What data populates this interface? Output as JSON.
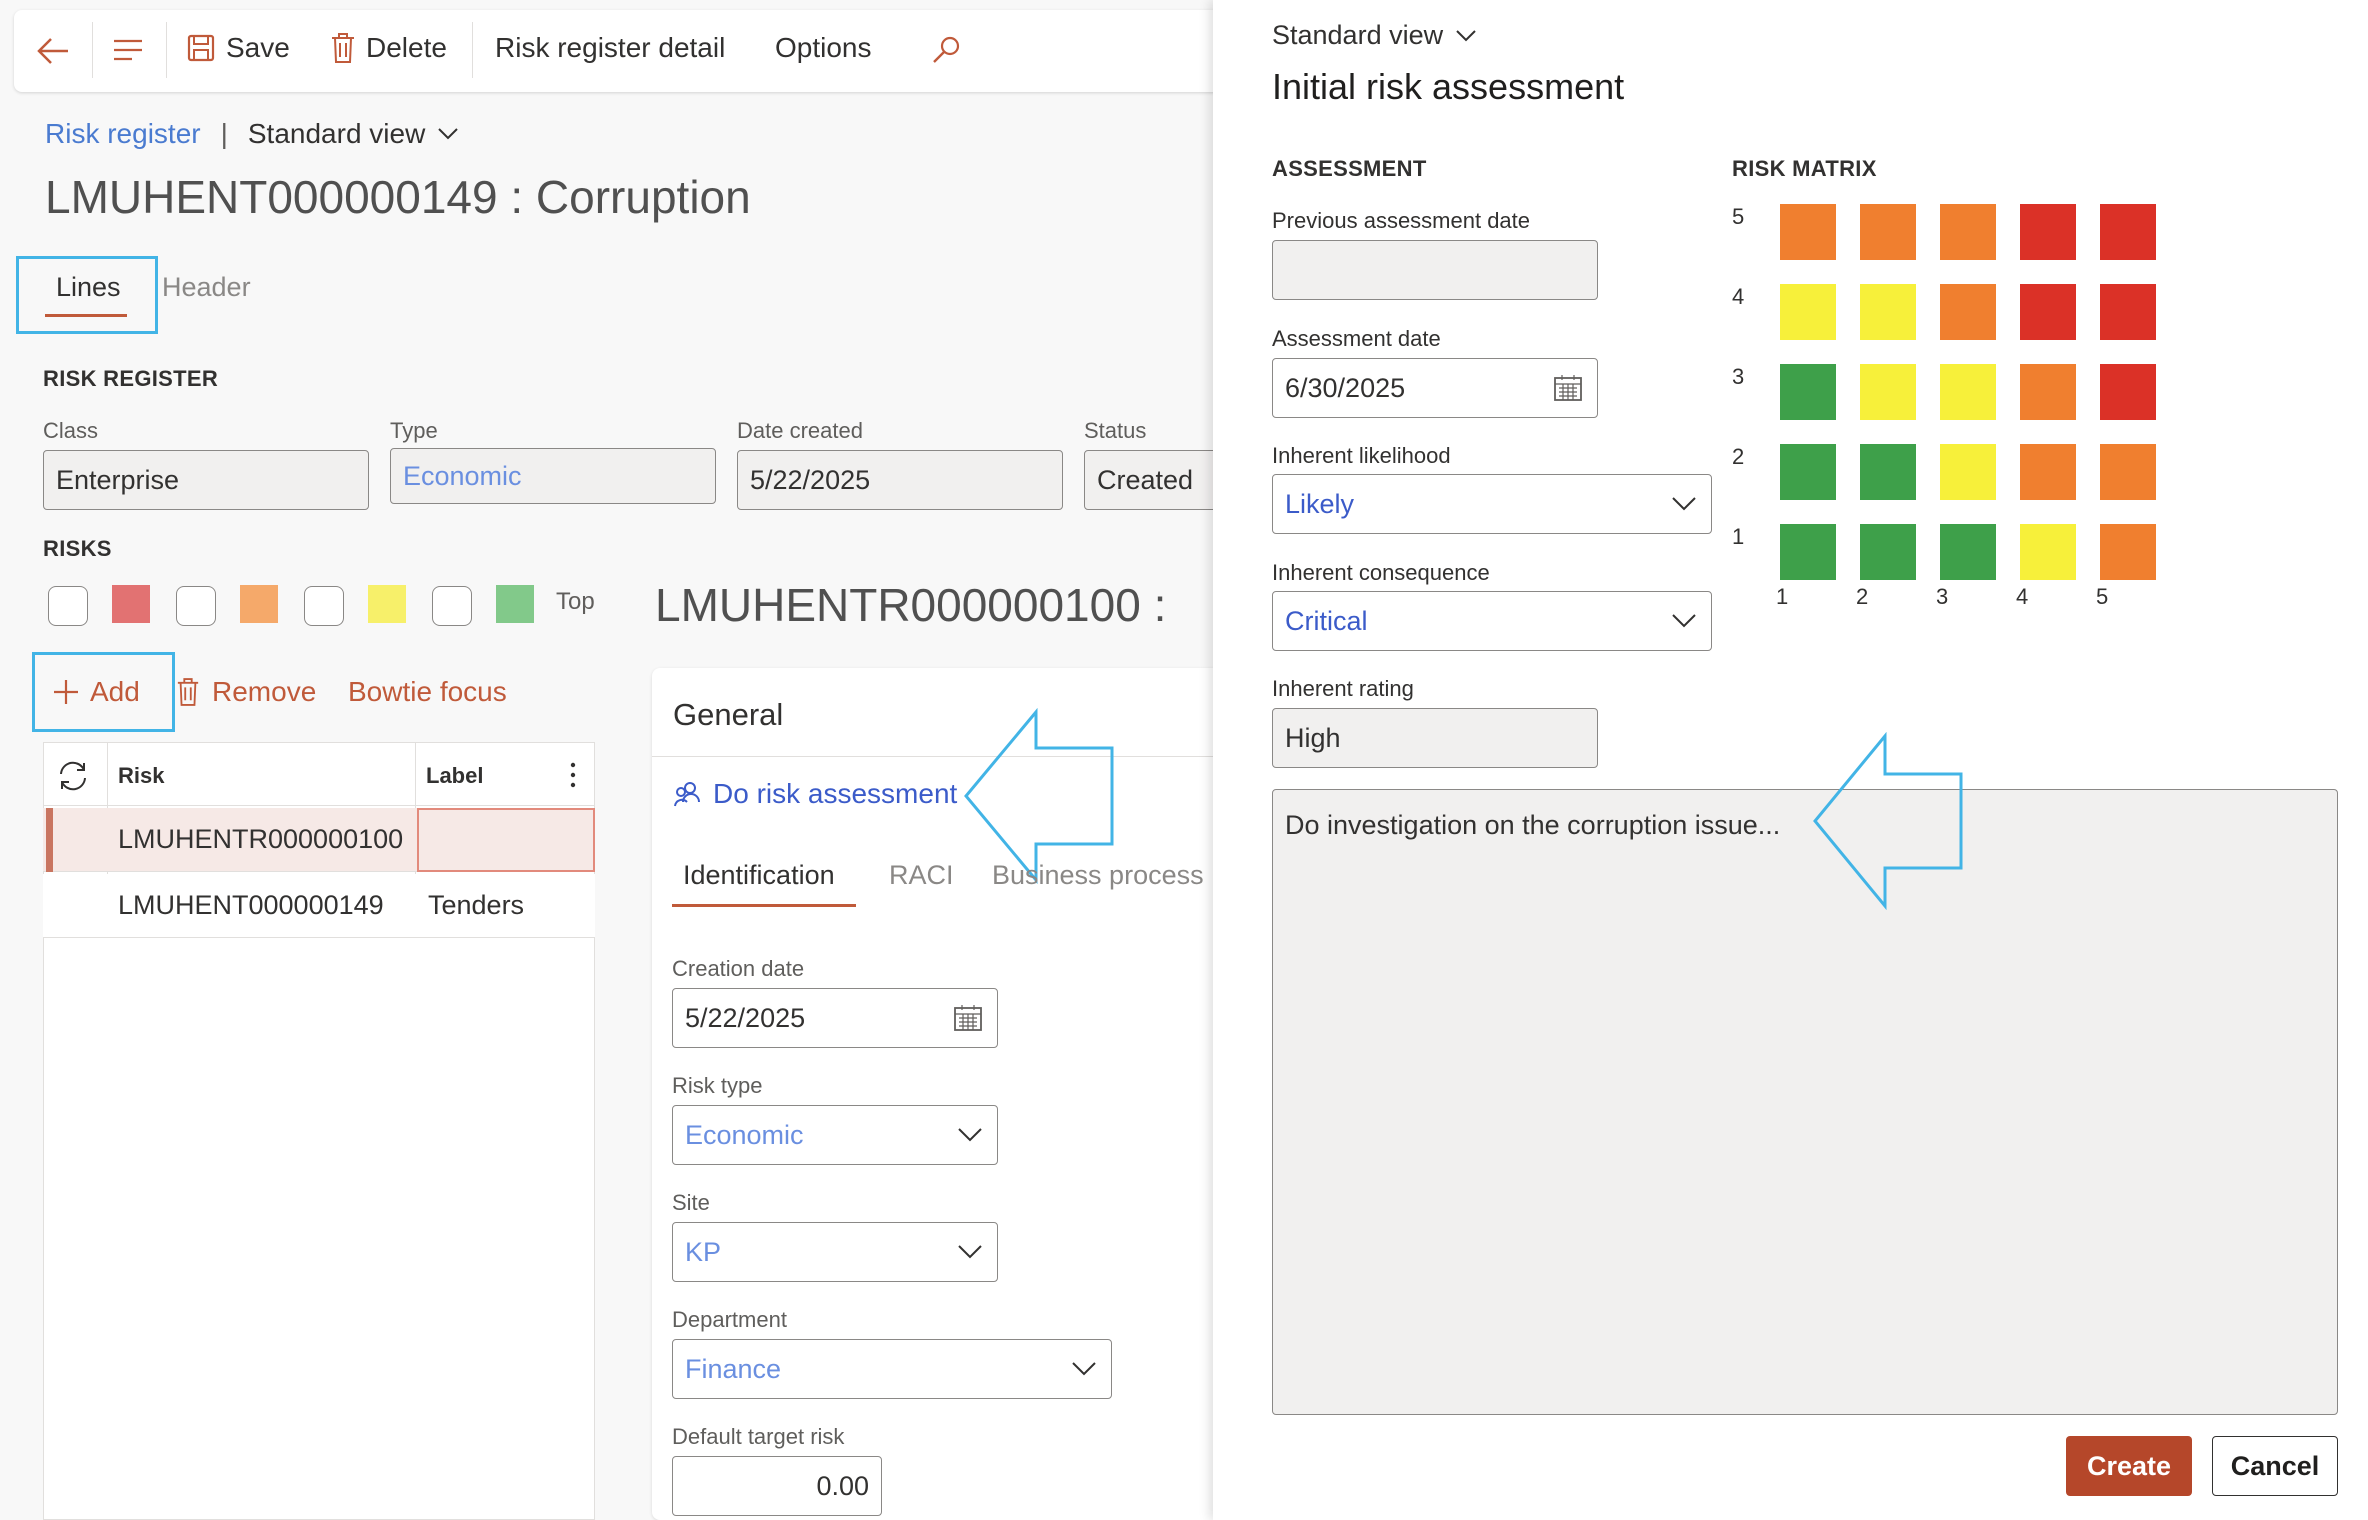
{
  "toolbar": {
    "save": "Save",
    "delete": "Delete",
    "detail": "Risk register detail",
    "options": "Options"
  },
  "breadcrumb": {
    "link": "Risk register",
    "view": "Standard view"
  },
  "page_title": "LMUHENT000000149 : Corruption",
  "tabs": {
    "lines": "Lines",
    "header": "Header"
  },
  "register": {
    "section": "RISK REGISTER",
    "class_label": "Class",
    "class_value": "Enterprise",
    "type_label": "Type",
    "type_value": "Economic",
    "date_label": "Date created",
    "date_value": "5/22/2025",
    "status_label": "Status",
    "status_value": "Created"
  },
  "risks": {
    "section": "RISKS",
    "top_label": "Top",
    "add": "Add",
    "remove": "Remove",
    "bowtie": "Bowtie focus",
    "col_risk": "Risk",
    "col_label": "Label",
    "rows": [
      {
        "risk": "LMUHENTR000000100",
        "label": ""
      },
      {
        "risk": "LMUHENT000000149",
        "label": "Tenders"
      }
    ]
  },
  "detail": {
    "title": "LMUHENTR000000100 :",
    "general": "General",
    "do_assessment": "Do risk assessment",
    "subtabs": [
      "Identification",
      "RACI",
      "Business process"
    ],
    "creation_date_label": "Creation date",
    "creation_date_value": "5/22/2025",
    "risk_type_label": "Risk type",
    "risk_type_value": "Economic",
    "site_label": "Site",
    "site_value": "KP",
    "department_label": "Department",
    "department_value": "Finance",
    "target_label": "Default target risk",
    "target_value": "0.00"
  },
  "dialog": {
    "view": "Standard view",
    "title": "Initial risk assessment",
    "assessment_section": "ASSESSMENT",
    "prev_date_label": "Previous assessment date",
    "prev_date_value": "",
    "assess_date_label": "Assessment date",
    "assess_date_value": "6/30/2025",
    "likelihood_label": "Inherent likelihood",
    "likelihood_value": "Likely",
    "consequence_label": "Inherent consequence",
    "consequence_value": "Critical",
    "rating_label": "Inherent rating",
    "rating_value": "High",
    "notes": "Do investigation on the corruption issue...",
    "create": "Create",
    "cancel": "Cancel",
    "matrix_section": "RISK MATRIX",
    "matrix_rows": [
      "5",
      "4",
      "3",
      "2",
      "1"
    ],
    "matrix_cols": [
      "1",
      "2",
      "3",
      "4",
      "5"
    ],
    "matrix_colors": [
      [
        "#f07f2f",
        "#f07f2f",
        "#f07f2f",
        "#db3127",
        "#db3127"
      ],
      [
        "#f7f03a",
        "#f7f03a",
        "#f07f2f",
        "#db3127",
        "#db3127"
      ],
      [
        "#3ea04a",
        "#f7f03a",
        "#f7f03a",
        "#f07f2f",
        "#db3127"
      ],
      [
        "#3ea04a",
        "#3ea04a",
        "#f7f03a",
        "#f07f2f",
        "#f07f2f"
      ],
      [
        "#3ea04a",
        "#3ea04a",
        "#3ea04a",
        "#f7f03a",
        "#f07f2f"
      ]
    ]
  },
  "colors": {
    "accent": "#b5472a",
    "link": "#3b5bc9",
    "callout": "#42b4e6"
  }
}
